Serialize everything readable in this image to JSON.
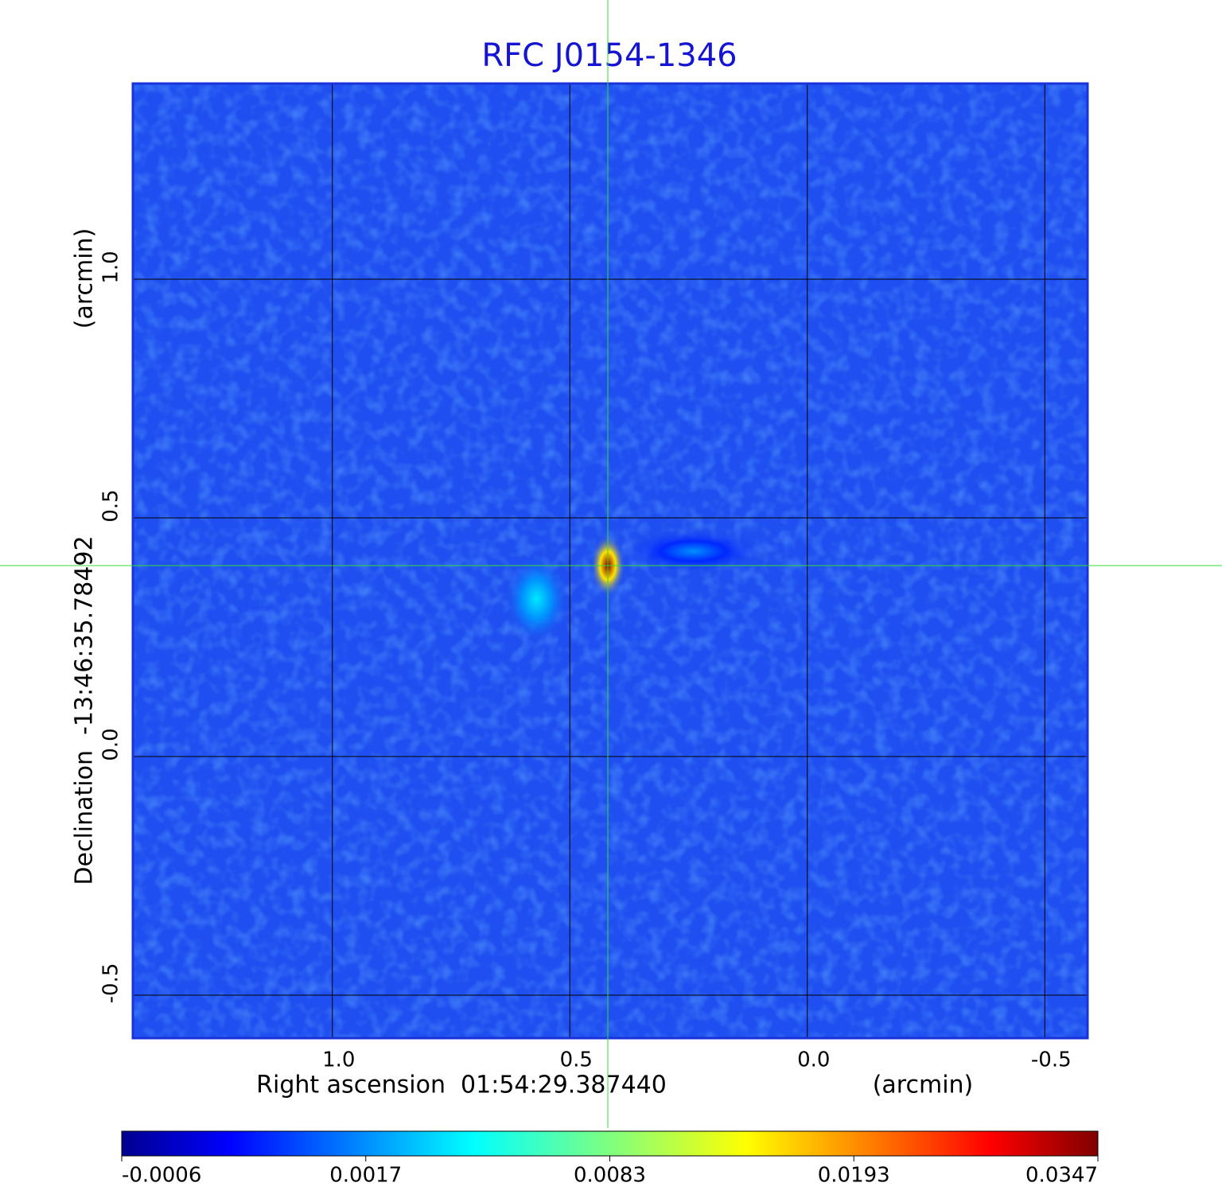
{
  "chart_data": {
    "type": "image",
    "title": "RFC J0154-1346",
    "x_label": "Right ascension  01:54:29.387440",
    "x_unit": "(arcmin)",
    "y_label": "Declination  -13:46:35.78492",
    "y_unit": "(arcmin)",
    "xlim": [
      1.42,
      -0.59
    ],
    "ylim": [
      -0.59,
      1.41
    ],
    "xticks": [
      {
        "value": 1,
        "label": "1.0"
      },
      0.5,
      {
        "value": 0,
        "label": "0.0"
      },
      -0.5
    ],
    "yticks": [
      {
        "value": -0.5,
        "label": "-0.5"
      },
      {
        "value": 0,
        "label": "0.0"
      },
      0.5,
      {
        "value": 1,
        "label": "1.0"
      }
    ],
    "grid": true,
    "background_color": "#1f4ff0",
    "frame_color": "#1a33d8",
    "title_color": "#1414d2",
    "crosshair": {
      "x": 0.42,
      "y": 0.4,
      "color": "#33dd33"
    },
    "sources": [
      {
        "x": 0.42,
        "y": 0.4,
        "peak": 0.0347
      },
      {
        "x": 0.57,
        "y": 0.33,
        "peak": 0.004
      },
      {
        "x": 0.24,
        "y": 0.43,
        "peak": 0.0017
      }
    ],
    "colormap": [
      "#00008f",
      "#0000ff",
      "#00ffff",
      "#ffff00",
      "#ff0000",
      "#800000"
    ],
    "colorbar_ticks": [
      -0.0006,
      0.0017,
      0.0083,
      0.0193,
      0.0347
    ]
  }
}
